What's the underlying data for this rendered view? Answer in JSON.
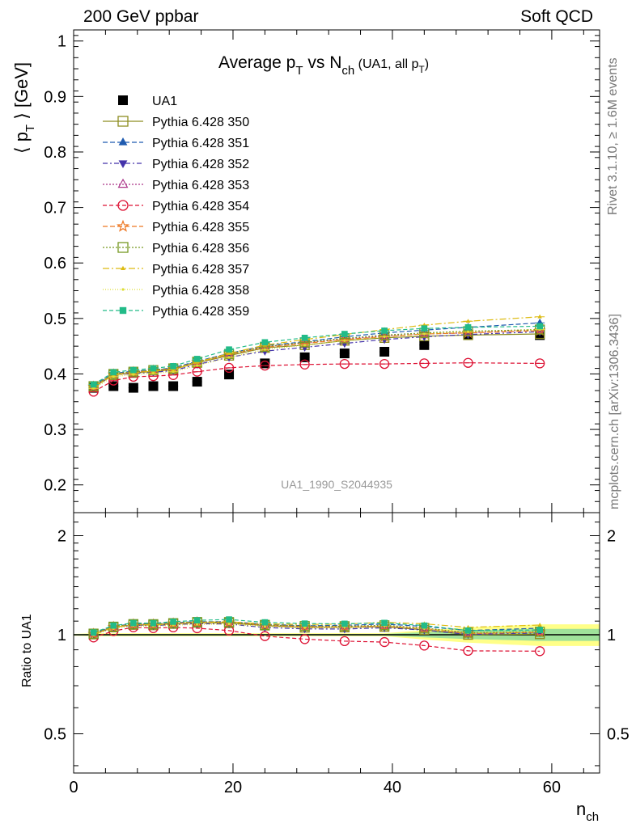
{
  "header": {
    "left_label": "200 GeV ppbar",
    "right_label": "Soft QCD",
    "side_label_top": "Rivet 3.1.10, ≥ 1.6M events",
    "side_label_bottom": "mcplots.cern.ch [arXiv:1306.3436]"
  },
  "chart_data": [
    {
      "type": "scatter",
      "panel": "main",
      "title": "Average p_T vs N_ch (UA1, all p_T)",
      "title_parts": {
        "a": "Average p",
        "a_sub": "T",
        "b": " vs N",
        "b_sub": "ch",
        "c": " (UA1, all p",
        "c_sub": "T",
        "d": ")"
      },
      "ylabel": "⟨ p_T ⟩ [GeV]",
      "ylabel_parts": {
        "a": "⟨ p",
        "a_sub": "T",
        "b": " ⟩ [GeV]"
      },
      "xlabel": "n_ch",
      "xlabel_parts": {
        "a": "n",
        "a_sub": "ch"
      },
      "watermark": "UA1_1990_S2044935",
      "xlim": [
        0,
        66
      ],
      "ylim": [
        0.15,
        1.02
      ],
      "x_ticks": [
        0,
        20,
        40,
        60
      ],
      "x_tick_labels": [
        "0",
        "20",
        "40",
        "60"
      ],
      "y_ticks": [
        0.2,
        0.3,
        0.4,
        0.5,
        0.6,
        0.7,
        0.8,
        0.9,
        1.0
      ],
      "y_tick_labels": [
        "0.2",
        "0.3",
        "0.4",
        "0.5",
        "0.6",
        "0.7",
        "0.8",
        "0.9",
        "1"
      ],
      "legend_position": "top-left",
      "x": [
        2.5,
        5,
        7.5,
        10,
        12.5,
        15.5,
        19.5,
        24,
        29,
        34,
        39,
        44,
        49.5,
        58.5
      ],
      "series": [
        {
          "name": "UA1",
          "color": "#000000",
          "marker": "square-filled",
          "dash": "none",
          "values": [
            0.375,
            0.378,
            0.375,
            0.378,
            0.378,
            0.386,
            0.399,
            0.419,
            0.43,
            0.437,
            0.44,
            0.452,
            0.47,
            0.47
          ]
        },
        {
          "name": "Pythia 6.428 350",
          "color": "#8d8d20",
          "marker": "square-open",
          "dash": "solid",
          "values": [
            0.376,
            0.398,
            0.402,
            0.404,
            0.408,
            0.42,
            0.433,
            0.447,
            0.452,
            0.46,
            0.465,
            0.468,
            0.47,
            0.472
          ]
        },
        {
          "name": "Pythia 6.428 351",
          "color": "#1f5bb0",
          "marker": "triangle-up-filled",
          "dash": "6,3",
          "values": [
            0.379,
            0.401,
            0.405,
            0.407,
            0.411,
            0.423,
            0.437,
            0.451,
            0.458,
            0.467,
            0.474,
            0.479,
            0.484,
            0.492
          ]
        },
        {
          "name": "Pythia 6.428 352",
          "color": "#4433aa",
          "marker": "triangle-down-filled",
          "dash": "6,3,2,3",
          "values": [
            0.377,
            0.398,
            0.401,
            0.403,
            0.406,
            0.417,
            0.43,
            0.441,
            0.448,
            0.455,
            0.462,
            0.467,
            0.471,
            0.476
          ]
        },
        {
          "name": "Pythia 6.428 353",
          "color": "#aa3388",
          "marker": "triangle-up-open",
          "dash": "2,2",
          "values": [
            0.378,
            0.4,
            0.403,
            0.406,
            0.41,
            0.422,
            0.436,
            0.449,
            0.456,
            0.463,
            0.468,
            0.472,
            0.474,
            0.48
          ]
        },
        {
          "name": "Pythia 6.428 354",
          "color": "#dd1133",
          "marker": "circle-open",
          "dash": "5,3",
          "values": [
            0.368,
            0.388,
            0.395,
            0.396,
            0.398,
            0.404,
            0.411,
            0.415,
            0.417,
            0.418,
            0.418,
            0.419,
            0.42,
            0.419
          ]
        },
        {
          "name": "Pythia 6.428 355",
          "color": "#ee7722",
          "marker": "star-open",
          "dash": "6,3",
          "values": [
            0.377,
            0.399,
            0.403,
            0.406,
            0.409,
            0.421,
            0.435,
            0.448,
            0.455,
            0.462,
            0.467,
            0.472,
            0.474,
            0.478
          ]
        },
        {
          "name": "Pythia 6.428 356",
          "color": "#779922",
          "marker": "square-open",
          "dash": "2,2",
          "values": [
            0.378,
            0.4,
            0.404,
            0.407,
            0.41,
            0.422,
            0.436,
            0.449,
            0.457,
            0.464,
            0.47,
            0.474,
            0.477,
            0.48
          ]
        },
        {
          "name": "Pythia 6.428 357",
          "color": "#ddbb11",
          "marker": "triangle-small",
          "dash": "8,3,2,3",
          "values": [
            0.377,
            0.398,
            0.402,
            0.405,
            0.408,
            0.421,
            0.437,
            0.452,
            0.462,
            0.471,
            0.48,
            0.488,
            0.495,
            0.503
          ]
        },
        {
          "name": "Pythia 6.428 358",
          "color": "#dddd33",
          "marker": "dot",
          "dash": "1,2",
          "values": [
            0.374,
            0.395,
            0.399,
            0.401,
            0.404,
            0.415,
            0.43,
            0.444,
            0.452,
            0.46,
            0.467,
            0.472,
            0.476,
            0.48
          ]
        },
        {
          "name": "Pythia 6.428 359",
          "color": "#22bb88",
          "marker": "square-small-filled",
          "dash": "5,3",
          "values": [
            0.381,
            0.403,
            0.407,
            0.41,
            0.414,
            0.427,
            0.444,
            0.457,
            0.465,
            0.472,
            0.478,
            0.482,
            0.484,
            0.486
          ]
        }
      ]
    },
    {
      "type": "line",
      "panel": "ratio",
      "ylabel": "Ratio to UA1",
      "xlim": [
        0,
        66
      ],
      "ylim": [
        0.38,
        2.35
      ],
      "log_y": true,
      "y_ticks": [
        0.5,
        1,
        2
      ],
      "y_tick_labels": [
        "0.5",
        "1",
        "2"
      ],
      "reference_value": 1,
      "reference_color": "#000000",
      "band_color_inner": "#7fd7a0",
      "band_color_outer": "#ffff88"
    }
  ]
}
